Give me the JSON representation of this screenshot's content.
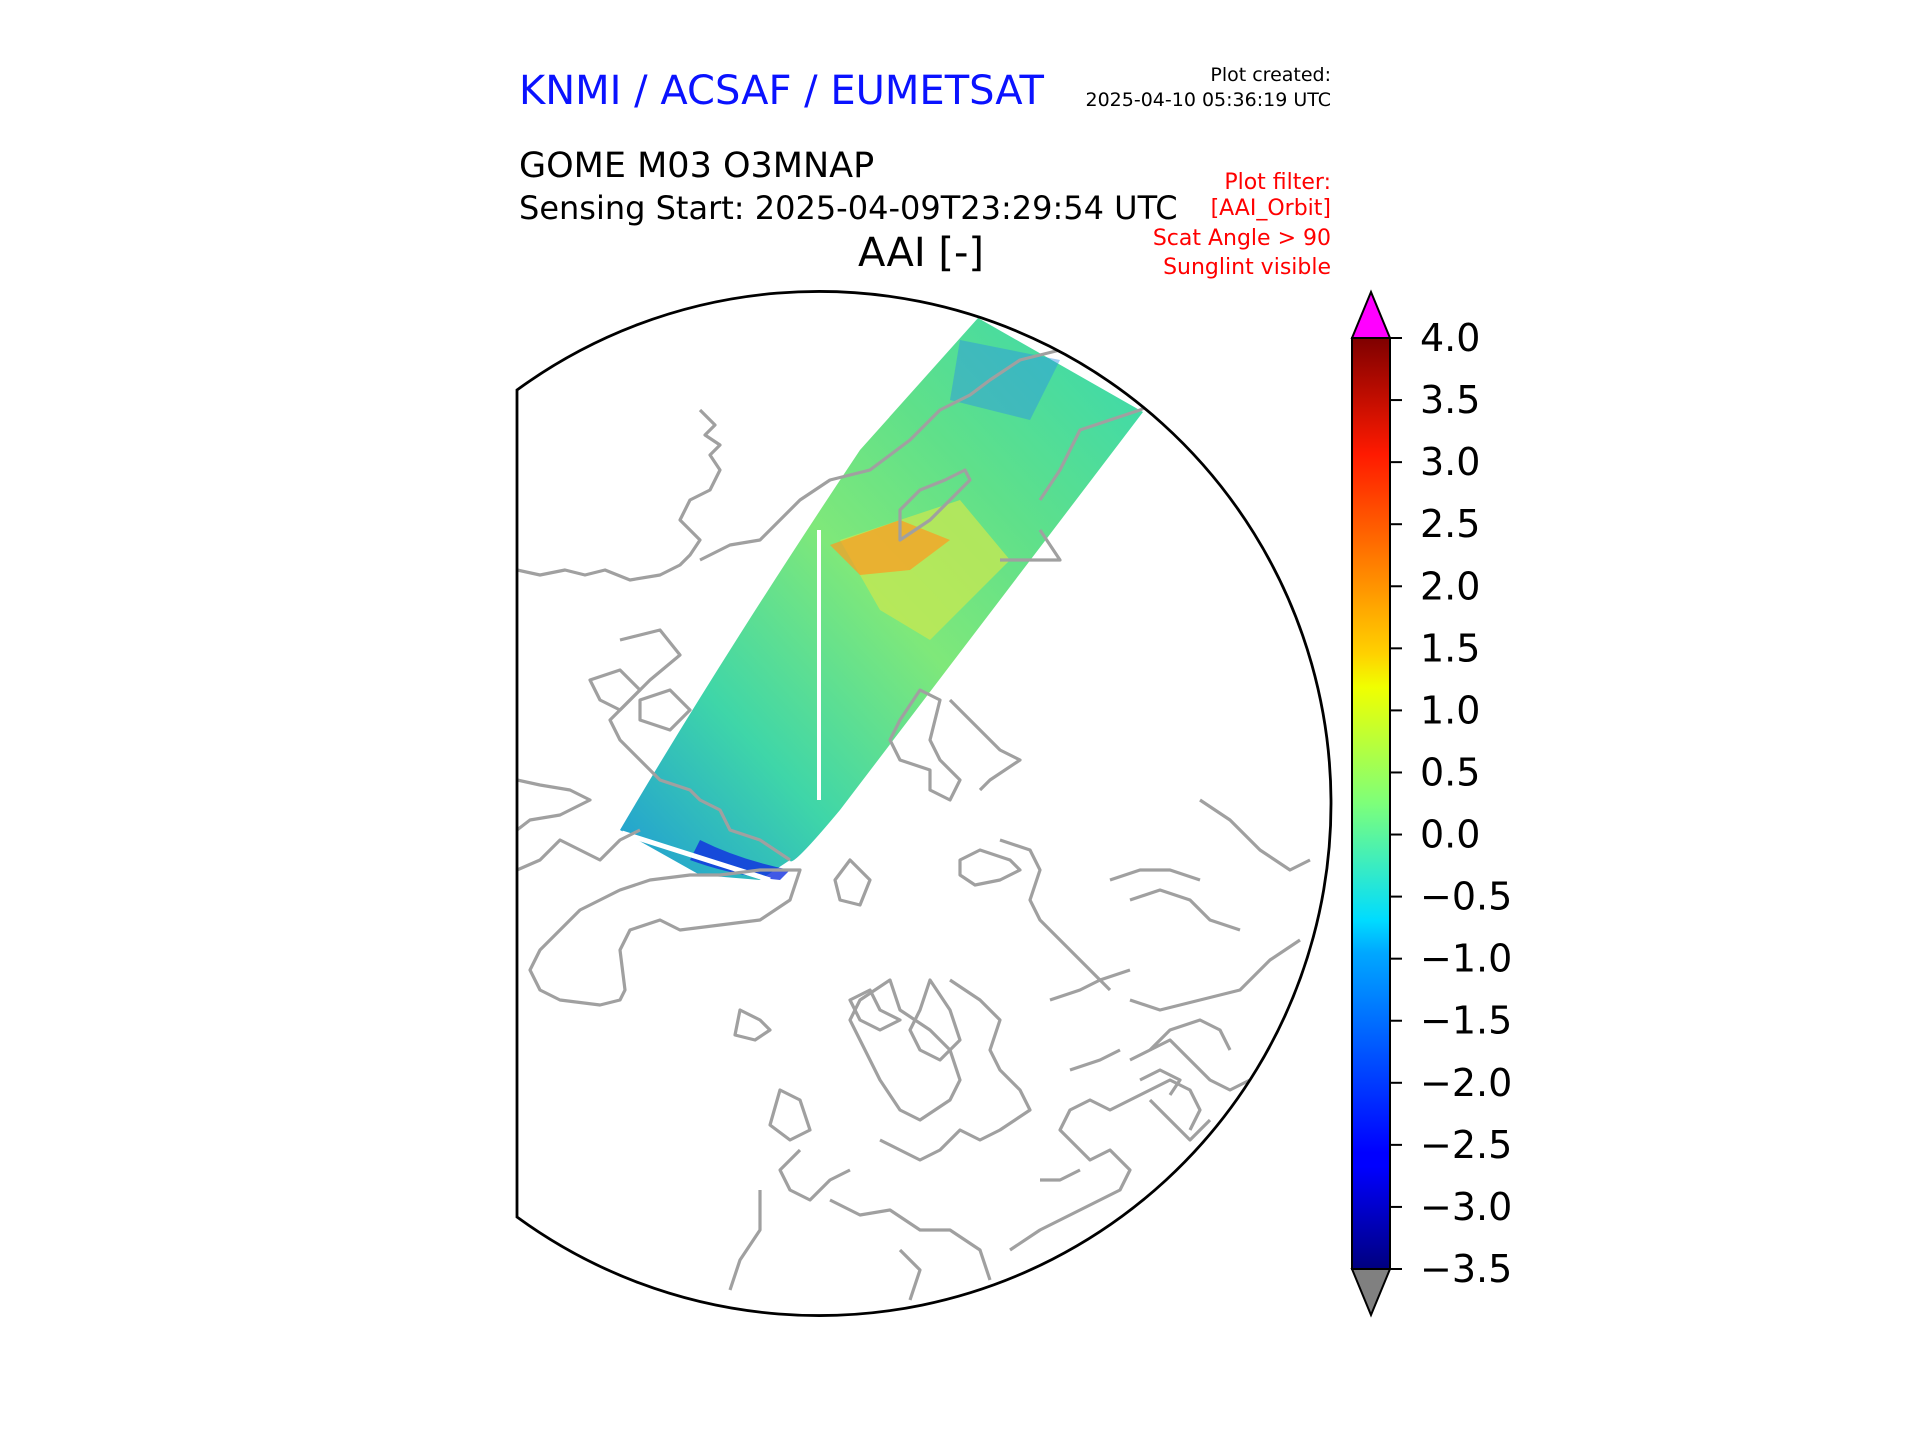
{
  "header": {
    "provider": "KNMI / ACSAF / EUMETSAT",
    "created_label": "Plot created:",
    "created_value": "2025-04-10 05:36:19 UTC",
    "product": "GOME M03 O3MNAP",
    "sensing_start": "Sensing Start: 2025-04-09T23:29:54 UTC",
    "map_title": "AAI [-]"
  },
  "filter": {
    "lines": [
      "Plot filter:",
      "[AAI_Orbit]",
      "Scat Angle > 90",
      "Sunglint visible"
    ]
  },
  "map": {
    "projection": "north-polar-stereographic",
    "coastline_color": "#a0a0a0",
    "boundary_color": "#000000",
    "swath_gap_color": "#ffffff"
  },
  "colorbar": {
    "min": -3.5,
    "max": 4.0,
    "ticks": [
      "4.0",
      "3.5",
      "3.0",
      "2.5",
      "2.0",
      "1.5",
      "1.0",
      "0.5",
      "0.0",
      "−0.5",
      "−1.0",
      "−1.5",
      "−2.0",
      "−2.5",
      "−3.0",
      "−3.5"
    ],
    "over_color": "#ff00ff",
    "under_color": "#808080",
    "colormap": "jet"
  }
}
